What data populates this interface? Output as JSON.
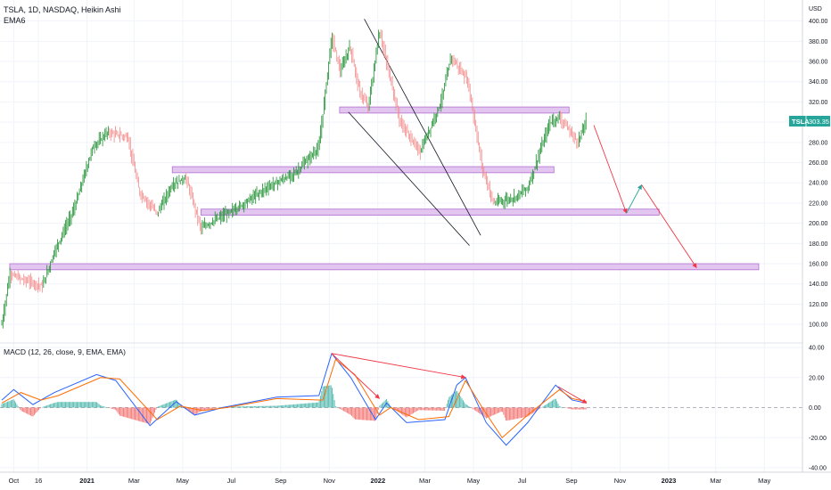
{
  "header": {
    "title": "TSLA, 1D, NASDAQ, Heikin Ashi",
    "indicator": "EMA6",
    "currency": "USD"
  },
  "price_tag": {
    "symbol": "TSLA",
    "value": "303.35"
  },
  "macd_header": "MACD (12, 26, close, 9, EMA, EMA)",
  "colors": {
    "up": "#26a69a",
    "down": "#ef5350",
    "up_candle": "#1b8f2e",
    "down_candle": "#f28b8b",
    "zone_fill": "#e3c6f0",
    "zone_stroke": "#b16fd1",
    "projection_down": "#f23645",
    "projection_up": "#26a69a",
    "macd_line": "#2962ff",
    "signal_line": "#ff6d00",
    "price_tag_bg": "#26a69a"
  },
  "chart_data": [
    {
      "type": "candlestick",
      "title": "TSLA, 1D, NASDAQ, Heikin Ashi",
      "x_ticks": [
        "Oct",
        "16",
        "2021",
        "Mar",
        "May",
        "Jul",
        "Sep",
        "Nov",
        "2022",
        "Mar",
        "May",
        "Jul",
        "Sep",
        "Nov",
        "2023",
        "Mar",
        "May"
      ],
      "y_ticks": [
        "100.00",
        "120.00",
        "140.00",
        "160.00",
        "180.00",
        "200.00",
        "220.00",
        "240.00",
        "260.00",
        "280.00",
        "300.00",
        "320.00",
        "340.00",
        "360.00",
        "380.00",
        "400.00"
      ],
      "ylim": [
        86,
        412
      ],
      "series_path": [
        [
          "2020-09-16",
          100
        ],
        [
          "2020-09-26",
          150
        ],
        [
          "2020-10-10",
          145
        ],
        [
          "2020-11-06",
          138
        ],
        [
          "2020-11-21",
          172
        ],
        [
          "2020-12-16",
          215
        ],
        [
          "2021-01-08",
          275
        ],
        [
          "2021-01-27",
          290
        ],
        [
          "2021-02-21",
          285
        ],
        [
          "2021-03-08",
          230
        ],
        [
          "2021-03-30",
          210
        ],
        [
          "2021-04-18",
          238
        ],
        [
          "2021-05-05",
          245
        ],
        [
          "2021-05-24",
          195
        ],
        [
          "2021-06-15",
          205
        ],
        [
          "2021-07-08",
          215
        ],
        [
          "2021-08-14",
          235
        ],
        [
          "2021-09-20",
          250
        ],
        [
          "2021-10-19",
          275
        ],
        [
          "2021-11-04",
          385
        ],
        [
          "2021-11-15",
          350
        ],
        [
          "2021-11-27",
          375
        ],
        [
          "2021-12-09",
          330
        ],
        [
          "2021-12-20",
          315
        ],
        [
          "2022-01-03",
          390
        ],
        [
          "2022-01-29",
          300
        ],
        [
          "2022-02-23",
          270
        ],
        [
          "2022-03-21",
          320
        ],
        [
          "2022-04-03",
          365
        ],
        [
          "2022-04-24",
          340
        ],
        [
          "2022-05-12",
          255
        ],
        [
          "2022-05-26",
          220
        ],
        [
          "2022-06-20",
          225
        ],
        [
          "2022-07-08",
          235
        ],
        [
          "2022-08-05",
          300
        ],
        [
          "2022-08-17",
          305
        ],
        [
          "2022-09-09",
          280
        ],
        [
          "2022-09-20",
          303
        ]
      ],
      "zones": [
        {
          "from": "2021-11-14",
          "to": "2022-08-29",
          "low": 309,
          "high": 315
        },
        {
          "from": "2021-04-18",
          "to": "2022-08-10",
          "low": 250,
          "high": 256
        },
        {
          "from": "2021-05-24",
          "to": "2022-12-20",
          "low": 208,
          "high": 214
        },
        {
          "from": "2020-09-26",
          "to": "2023-04-24",
          "low": 154,
          "high": 160
        }
      ],
      "trendlines": [
        {
          "from": [
            "2021-12-15",
            402
          ],
          "to": [
            "2022-05-10",
            188
          ]
        },
        {
          "from": [
            "2021-11-25",
            310
          ],
          "to": [
            "2022-04-26",
            178
          ]
        }
      ],
      "projections": [
        {
          "color": "red",
          "points": [
            [
              "2022-09-29",
              297
            ],
            [
              "2022-11-09",
              210
            ]
          ]
        },
        {
          "color": "green",
          "points": [
            [
              "2022-11-09",
              210
            ],
            [
              "2022-11-28",
              238
            ]
          ]
        },
        {
          "color": "red",
          "points": [
            [
              "2022-11-28",
              238
            ],
            [
              "2023-02-05",
              156
            ]
          ]
        }
      ],
      "last_price": 303.35
    },
    {
      "type": "line",
      "title": "MACD (12, 26, close, 9, EMA, EMA)",
      "y_ticks": [
        "40.00",
        "20.00",
        "0.00",
        "-20.00",
        "-40.00"
      ],
      "ylim": [
        -40,
        40
      ],
      "series": [
        {
          "name": "MACD",
          "points": [
            [
              "2020-09-16",
              5
            ],
            [
              "2020-10-01",
              12
            ],
            [
              "2020-10-25",
              2
            ],
            [
              "2020-11-21",
              10
            ],
            [
              "2021-01-13",
              22
            ],
            [
              "2021-02-06",
              18
            ],
            [
              "2021-03-21",
              -12
            ],
            [
              "2021-04-23",
              4
            ],
            [
              "2021-05-16",
              -5
            ],
            [
              "2021-06-20",
              0
            ],
            [
              "2021-08-27",
              7
            ],
            [
              "2021-10-19",
              8
            ],
            [
              "2021-11-04",
              36
            ],
            [
              "2021-11-28",
              20
            ],
            [
              "2021-12-29",
              -8
            ],
            [
              "2022-01-12",
              3
            ],
            [
              "2022-02-06",
              -10
            ],
            [
              "2022-03-26",
              -8
            ],
            [
              "2022-04-10",
              15
            ],
            [
              "2022-04-21",
              20
            ],
            [
              "2022-05-17",
              -10
            ],
            [
              "2022-06-11",
              -25
            ],
            [
              "2022-07-08",
              -10
            ],
            [
              "2022-08-12",
              15
            ],
            [
              "2022-09-02",
              5
            ],
            [
              "2022-09-20",
              3
            ]
          ]
        },
        {
          "name": "Signal",
          "points": [
            [
              "2020-09-16",
              3
            ],
            [
              "2020-10-10",
              10
            ],
            [
              "2020-11-04",
              5
            ],
            [
              "2020-11-26",
              8
            ],
            [
              "2021-01-18",
              20
            ],
            [
              "2021-02-11",
              19
            ],
            [
              "2021-03-30",
              -8
            ],
            [
              "2021-04-28",
              1
            ],
            [
              "2021-05-26",
              -2
            ],
            [
              "2021-06-25",
              0
            ],
            [
              "2021-08-27",
              6
            ],
            [
              "2021-10-24",
              5
            ],
            [
              "2021-11-09",
              32
            ],
            [
              "2021-12-03",
              22
            ],
            [
              "2022-01-03",
              -5
            ],
            [
              "2022-01-17",
              0
            ],
            [
              "2022-02-21",
              -8
            ],
            [
              "2022-03-31",
              -6
            ],
            [
              "2022-04-21",
              18
            ],
            [
              "2022-05-12",
              0
            ],
            [
              "2022-06-06",
              -20
            ],
            [
              "2022-07-08",
              -5
            ],
            [
              "2022-08-17",
              12
            ],
            [
              "2022-09-02",
              6
            ],
            [
              "2022-09-20",
              4
            ]
          ]
        }
      ],
      "divergence_arrows": [
        [
          [
            "2021-11-04",
            36
          ],
          [
            "2022-01-03",
            6
          ]
        ],
        [
          [
            "2021-11-04",
            36
          ],
          [
            "2022-04-21",
            20
          ]
        ],
        [
          [
            "2022-08-15",
            14
          ],
          [
            "2022-09-20",
            3
          ]
        ]
      ]
    }
  ]
}
